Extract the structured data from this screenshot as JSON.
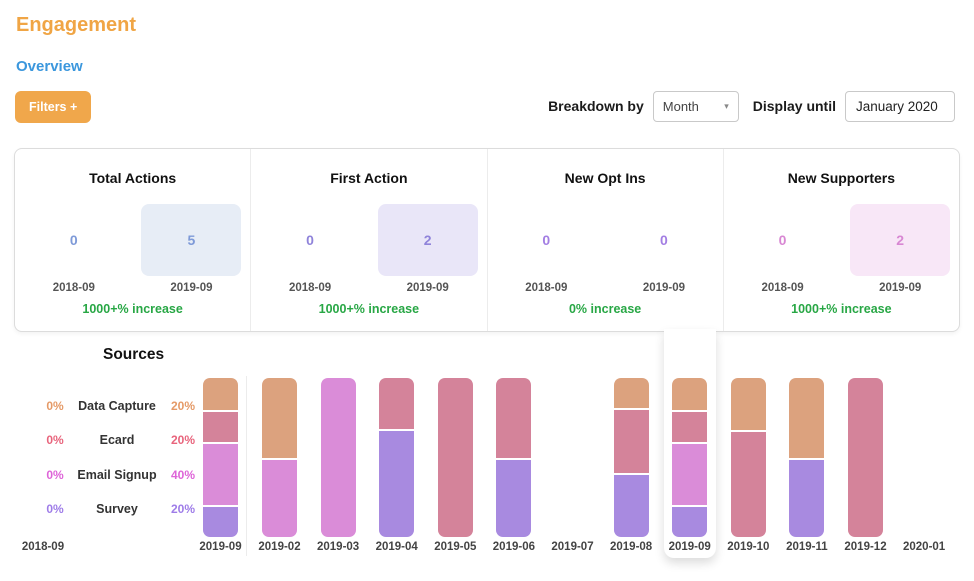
{
  "page": {
    "title": "Engagement",
    "subtitle": "Overview",
    "accent_orange": "#f0a545",
    "accent_blue": "#3b97dd"
  },
  "toolbar": {
    "filters_label": "Filters +",
    "breakdown_label": "Breakdown by",
    "breakdown_value": "Month",
    "display_until_label": "Display until",
    "display_until_value": "January 2020"
  },
  "stats": {
    "change_color": "#28a745",
    "cards": [
      {
        "title": "Total Actions",
        "values": [
          {
            "label": "2018-09",
            "value": "0",
            "highlight": false
          },
          {
            "label": "2019-09",
            "value": "5",
            "highlight": true
          }
        ],
        "change": "1000+% increase",
        "value_color": "#7e9ad8",
        "highlight_bg": "#e7edf6"
      },
      {
        "title": "First Action",
        "values": [
          {
            "label": "2018-09",
            "value": "0",
            "highlight": false
          },
          {
            "label": "2019-09",
            "value": "2",
            "highlight": true
          }
        ],
        "change": "1000+% increase",
        "value_color": "#8f83da",
        "highlight_bg": "#e9e6f8"
      },
      {
        "title": "New Opt Ins",
        "values": [
          {
            "label": "2018-09",
            "value": "0",
            "highlight": false
          },
          {
            "label": "2019-09",
            "value": "0",
            "highlight": false
          }
        ],
        "change": "0% increase",
        "value_color": "#a37ee3",
        "highlight_bg": ""
      },
      {
        "title": "New Supporters",
        "values": [
          {
            "label": "2018-09",
            "value": "0",
            "highlight": false
          },
          {
            "label": "2019-09",
            "value": "2",
            "highlight": true
          }
        ],
        "change": "1000+% increase",
        "value_color": "#d887d3",
        "highlight_bg": "#f8e7f7"
      }
    ]
  },
  "chart_data": {
    "type": "bar",
    "stacked": true,
    "title": "Sources",
    "ylim": [
      0,
      100
    ],
    "baseline_label": "2018-09",
    "summary_column": {
      "label": "2019-09"
    },
    "highlight_category": "2019-09",
    "categories": [
      "2019-02",
      "2019-03",
      "2019-04",
      "2019-05",
      "2019-06",
      "2019-07",
      "2019-08",
      "2019-09",
      "2019-10",
      "2019-11",
      "2019-12",
      "2020-01"
    ],
    "sources": [
      {
        "name": "Data Capture",
        "baseline_pct": "0%",
        "current_pct": "20%",
        "label_color": "#e59a67",
        "bar_color": "#dca27e",
        "values": [
          50,
          0,
          0,
          0,
          0,
          0,
          19,
          20,
          33,
          50,
          0,
          0
        ]
      },
      {
        "name": "Ecard",
        "baseline_pct": "0%",
        "current_pct": "20%",
        "label_color": "#e8647c",
        "bar_color": "#d4839a",
        "values": [
          0,
          0,
          32,
          100,
          50,
          0,
          41,
          20,
          67,
          0,
          100,
          0
        ]
      },
      {
        "name": "Email Signup",
        "baseline_pct": "0%",
        "current_pct": "40%",
        "label_color": "#de64d8",
        "bar_color": "#da8cd8",
        "values": [
          50,
          100,
          0,
          0,
          0,
          0,
          0,
          40,
          0,
          0,
          0,
          0
        ]
      },
      {
        "name": "Survey",
        "baseline_pct": "0%",
        "current_pct": "20%",
        "label_color": "#9e7ce8",
        "bar_color": "#a88ae0",
        "values": [
          0,
          0,
          68,
          0,
          50,
          0,
          40,
          20,
          0,
          50,
          0,
          0
        ]
      }
    ]
  }
}
